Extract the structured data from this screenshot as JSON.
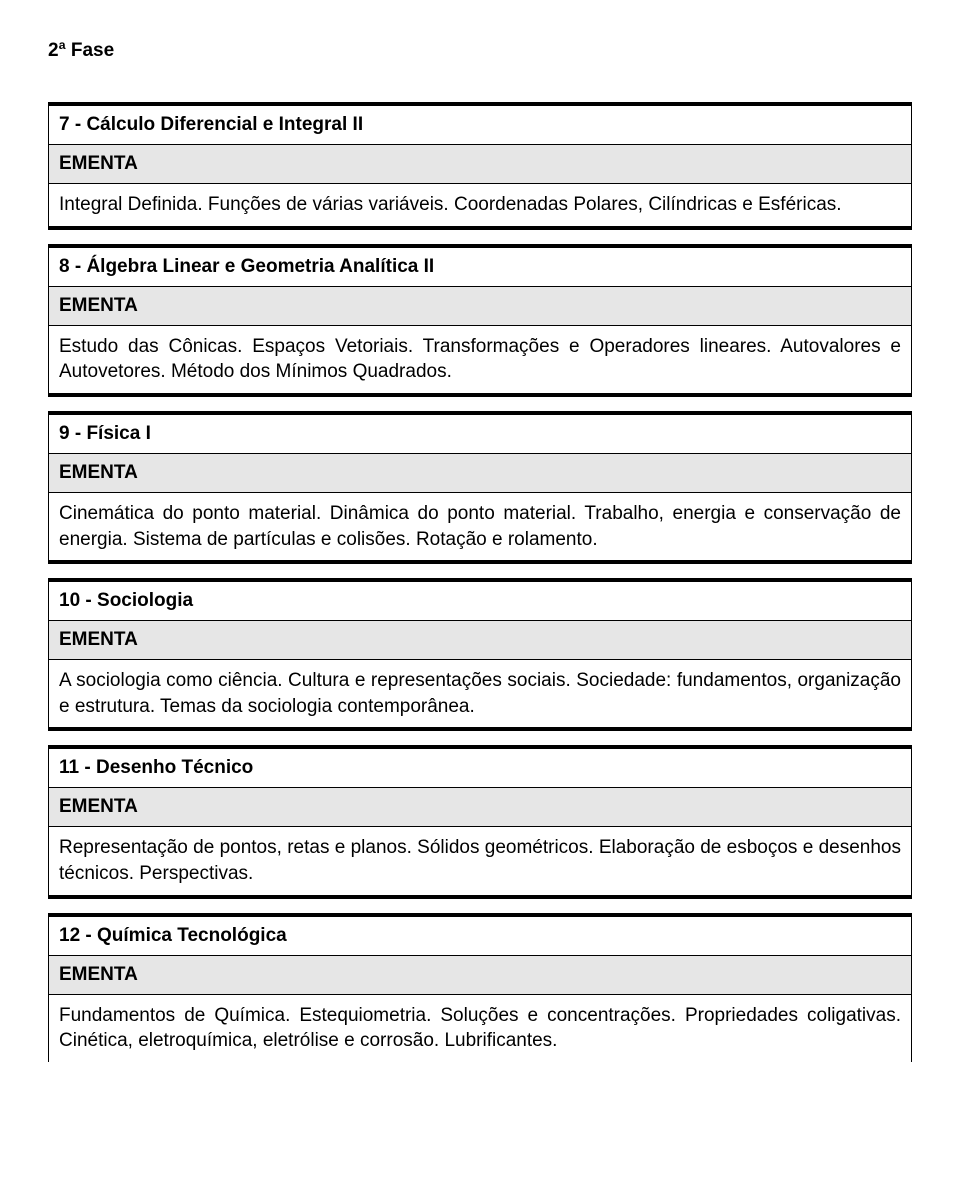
{
  "phase_title": "2ª Fase",
  "ementa_label": "EMENTA",
  "courses": [
    {
      "title": "7 - Cálculo Diferencial e Integral II",
      "desc": "Integral Definida. Funções de várias variáveis. Coordenadas Polares, Cilíndricas e Esféricas."
    },
    {
      "title": "8 - Álgebra Linear e Geometria Analítica II",
      "desc": "Estudo das Cônicas. Espaços Vetoriais. Transformações e Operadores lineares. Autovalores e Autovetores. Método dos Mínimos Quadrados."
    },
    {
      "title": "9 - Física I",
      "desc": "Cinemática do ponto material. Dinâmica do ponto material. Trabalho, energia e conservação de energia. Sistema de partículas e colisões. Rotação e rolamento."
    },
    {
      "title": "10 - Sociologia",
      "desc": "A sociologia como ciência. Cultura e representações sociais. Sociedade: fundamentos, organização e estrutura. Temas da sociologia contemporânea."
    },
    {
      "title": "11 - Desenho Técnico",
      "desc": "Representação de pontos, retas e planos. Sólidos geométricos. Elaboração de esboços e desenhos técnicos. Perspectivas."
    },
    {
      "title": "12 - Química Tecnológica",
      "desc": "Fundamentos de Química. Estequiometria. Soluções e concentrações. Propriedades coligativas. Cinética, eletroquímica, eletrólise e corrosão. Lubrificantes."
    }
  ]
}
